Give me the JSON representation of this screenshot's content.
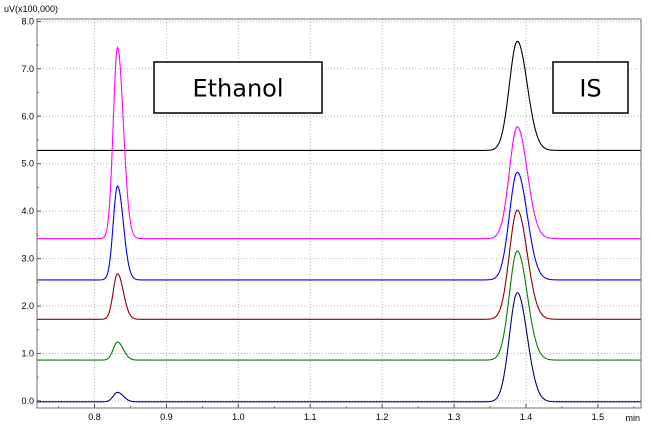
{
  "chart_data": {
    "type": "line",
    "title": "",
    "ylabel": "uV(x100,000)",
    "xlabel": "min",
    "xlim": [
      0.72,
      1.56
    ],
    "ylim": [
      -0.15,
      8.05
    ],
    "xticks": [
      0.8,
      0.9,
      1.0,
      1.1,
      1.2,
      1.3,
      1.4,
      1.5
    ],
    "xtick_labels": [
      "0.8",
      "0.9",
      "1.0",
      "1.1",
      "1.2",
      "1.3",
      "1.4",
      "1.5"
    ],
    "yticks": [
      0.0,
      1.0,
      2.0,
      3.0,
      4.0,
      5.0,
      6.0,
      7.0,
      8.0
    ],
    "ytick_labels": [
      "0.0",
      "1.0",
      "2.0",
      "3.0",
      "4.0",
      "5.0",
      "6.0",
      "7.0",
      "8.0"
    ],
    "grid": true,
    "legend": "none",
    "annotations": [
      {
        "text": "Ethanol",
        "anchor": "upper-left-center"
      },
      {
        "text": "IS",
        "anchor": "upper-right"
      }
    ],
    "series": [
      {
        "color": "#000000",
        "baseline": 5.28,
        "ethanol_peak": {
          "x": 0.832,
          "height": 0.0,
          "sigma": 0.006
        },
        "is_peak": {
          "x": 1.388,
          "height": 2.3,
          "sigma": 0.011
        }
      },
      {
        "color": "#ff00ff",
        "baseline": 3.42,
        "ethanol_peak": {
          "x": 0.832,
          "height": 4.03,
          "sigma": 0.006
        },
        "is_peak": {
          "x": 1.388,
          "height": 2.36,
          "sigma": 0.011
        }
      },
      {
        "color": "#0000ff",
        "baseline": 2.55,
        "ethanol_peak": {
          "x": 0.832,
          "height": 1.98,
          "sigma": 0.006
        },
        "is_peak": {
          "x": 1.388,
          "height": 2.27,
          "sigma": 0.011
        }
      },
      {
        "color": "#8b0000",
        "baseline": 1.72,
        "ethanol_peak": {
          "x": 0.832,
          "height": 0.96,
          "sigma": 0.006
        },
        "is_peak": {
          "x": 1.388,
          "height": 2.3,
          "sigma": 0.011
        }
      },
      {
        "color": "#008000",
        "baseline": 0.86,
        "ethanol_peak": {
          "x": 0.832,
          "height": 0.38,
          "sigma": 0.006
        },
        "is_peak": {
          "x": 1.388,
          "height": 2.3,
          "sigma": 0.011
        }
      },
      {
        "color": "#000080",
        "baseline": -0.02,
        "ethanol_peak": {
          "x": 0.832,
          "height": 0.2,
          "sigma": 0.006
        },
        "is_peak": {
          "x": 1.388,
          "height": 2.3,
          "sigma": 0.011
        }
      }
    ]
  }
}
